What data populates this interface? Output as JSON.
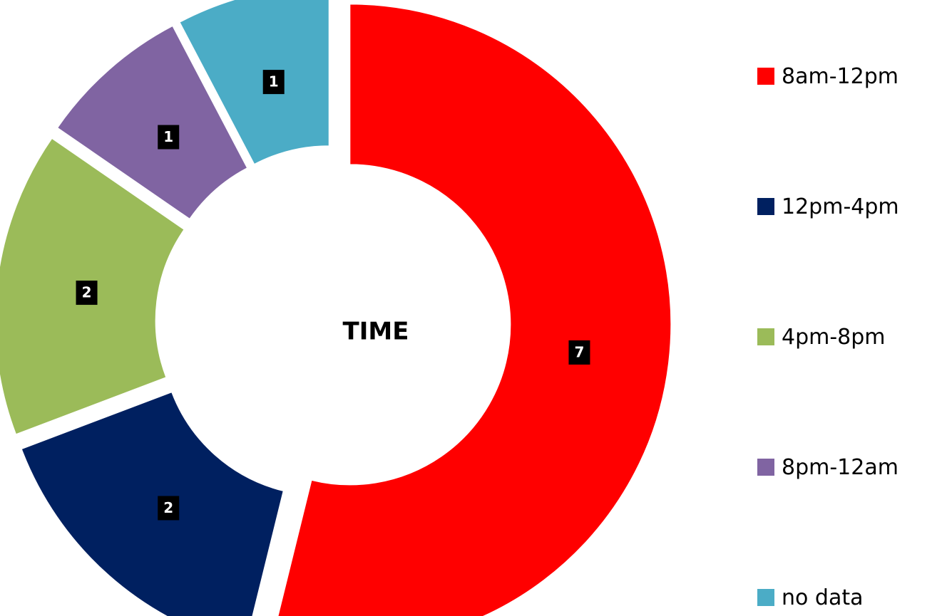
{
  "chart_data": {
    "type": "pie",
    "subtype": "doughnut",
    "center_label": "TIME",
    "categories": [
      "8am-12pm",
      "12pm-4pm",
      "4pm-8pm",
      "8pm-12am",
      "no data"
    ],
    "values": [
      7,
      2,
      2,
      1,
      1
    ],
    "data_labels": [
      "7",
      "2",
      "2",
      "1",
      "1"
    ],
    "colors": [
      "#ff0000",
      "#002060",
      "#9bbb59",
      "#8064a2",
      "#4bacc6"
    ],
    "legend_position": "right",
    "exploded": true
  }
}
